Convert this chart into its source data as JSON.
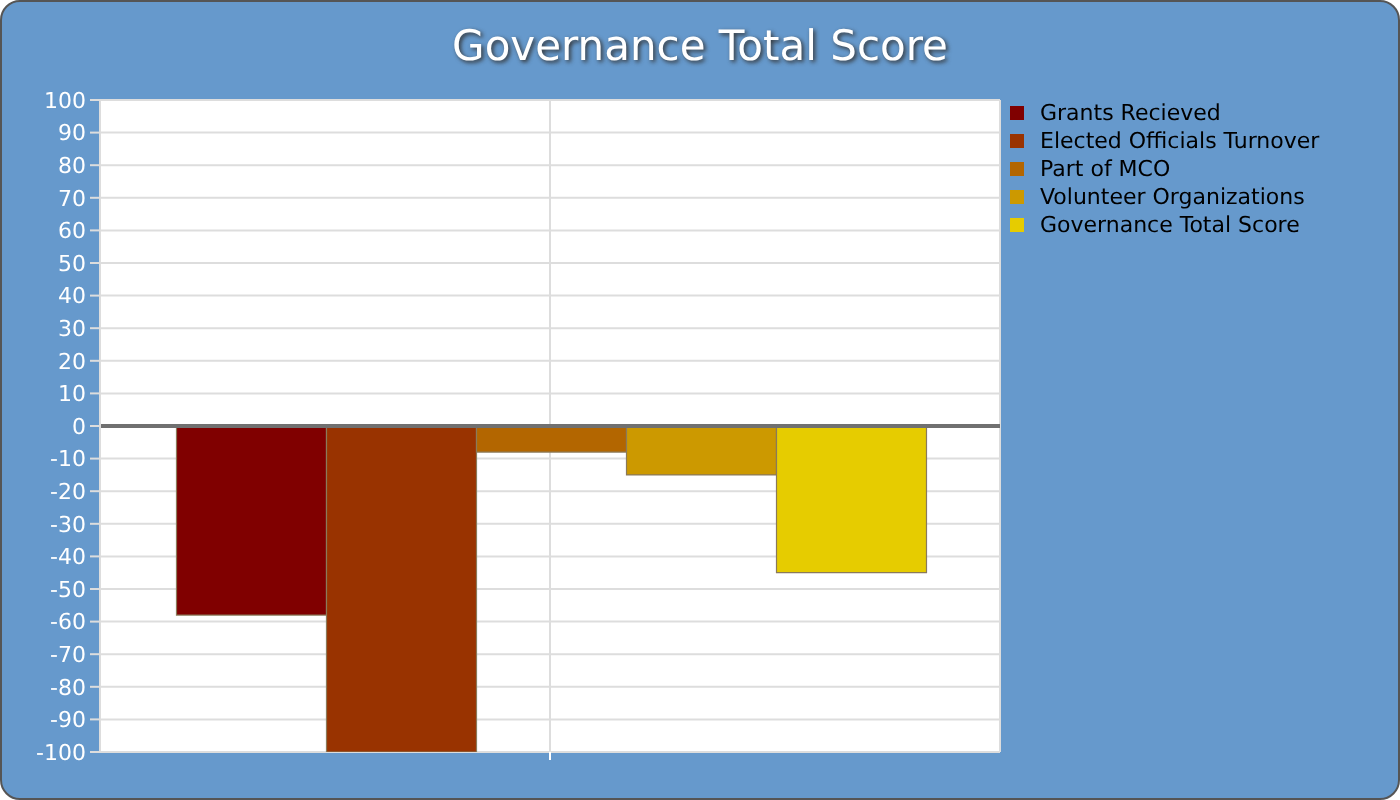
{
  "chart_data": {
    "type": "bar",
    "title": "Governance Total Score",
    "categories": [
      null
    ],
    "series": [
      {
        "name": "Grants Recieved",
        "color": "#800000",
        "values": [
          -58
        ]
      },
      {
        "name": "Elected Officials Turnover",
        "color": "#993300",
        "values": [
          -100
        ]
      },
      {
        "name": "Part of MCO",
        "color": "#b36600",
        "values": [
          -8
        ]
      },
      {
        "name": "Volunteer Organizations",
        "color": "#cc9900",
        "values": [
          -15
        ]
      },
      {
        "name": "Governance Total Score",
        "color": "#e6cc00",
        "values": [
          -45
        ]
      }
    ],
    "ylim": [
      -100,
      100
    ],
    "yticks": [
      -100,
      -90,
      -80,
      -70,
      -60,
      -50,
      -40,
      -30,
      -20,
      -10,
      0,
      10,
      20,
      30,
      40,
      50,
      60,
      70,
      80,
      90,
      100
    ],
    "grid": true,
    "legend": "top right"
  }
}
